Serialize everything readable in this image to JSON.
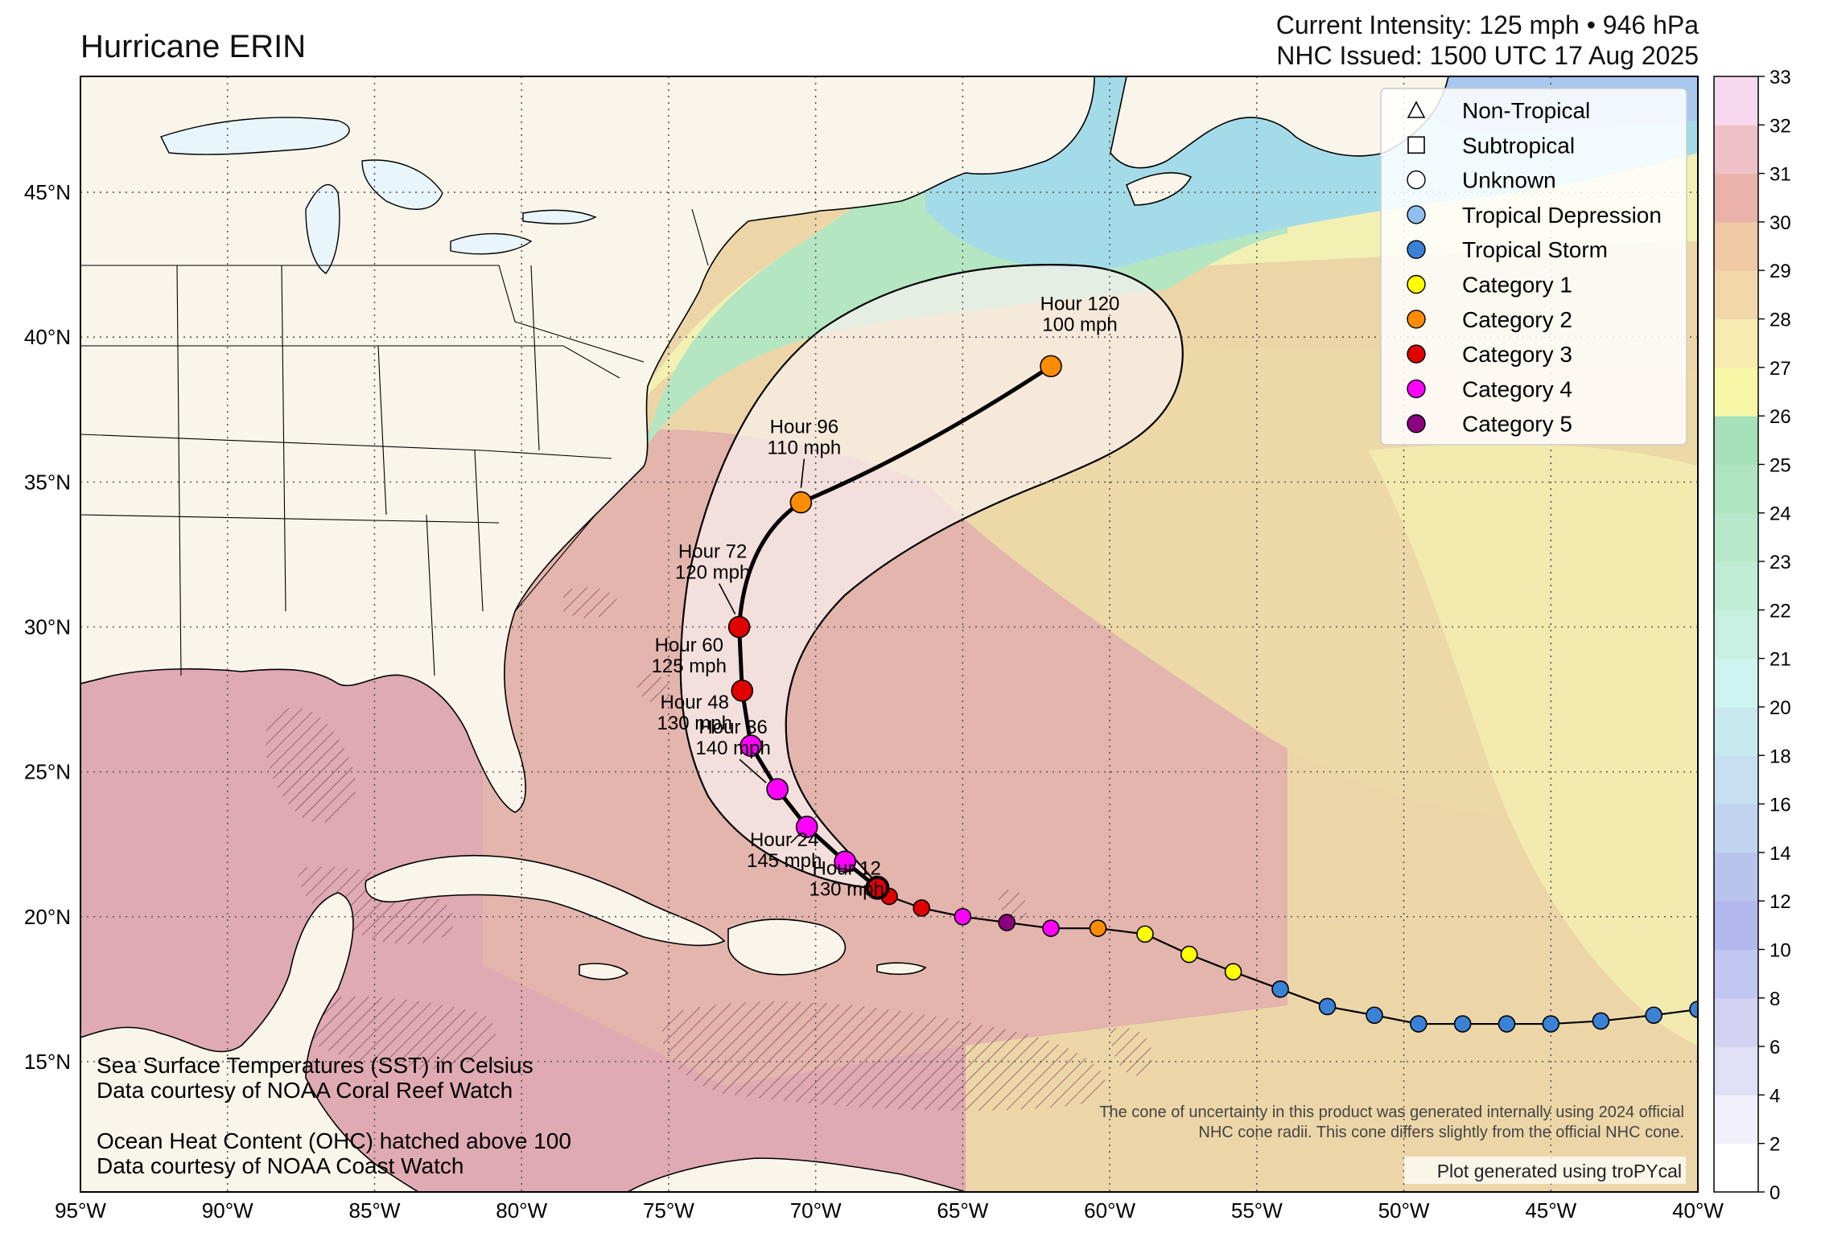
{
  "title": "Hurricane ERIN",
  "header": {
    "intensity": "Current Intensity: 125 mph • 946 hPa",
    "issued": "NHC Issued: 1500 UTC 17 Aug 2025"
  },
  "map_extent": {
    "lon": [
      -95,
      -40
    ],
    "lat": [
      10.5,
      49
    ]
  },
  "lon_ticks": [
    "95°W",
    "90°W",
    "85°W",
    "80°W",
    "75°W",
    "70°W",
    "65°W",
    "60°W",
    "55°W",
    "50°W",
    "45°W",
    "40°W"
  ],
  "lat_ticks": [
    "15°N",
    "20°N",
    "25°N",
    "30°N",
    "35°N",
    "40°N",
    "45°N"
  ],
  "legend": [
    {
      "label": "Non-Tropical",
      "shape": "triangle",
      "color": "#ffffff"
    },
    {
      "label": "Subtropical",
      "shape": "square",
      "color": "#ffffff"
    },
    {
      "label": "Unknown",
      "shape": "circle",
      "color": "#ffffff"
    },
    {
      "label": "Tropical Depression",
      "shape": "circle",
      "color": "#8fbfef"
    },
    {
      "label": "Tropical Storm",
      "shape": "circle",
      "color": "#3a82d6"
    },
    {
      "label": "Category 1",
      "shape": "circle",
      "color": "#ffff00"
    },
    {
      "label": "Category 2",
      "shape": "circle",
      "color": "#ff8c00"
    },
    {
      "label": "Category 3",
      "shape": "circle",
      "color": "#e00000"
    },
    {
      "label": "Category 4",
      "shape": "circle",
      "color": "#ff00ff"
    },
    {
      "label": "Category 5",
      "shape": "circle",
      "color": "#8b0080"
    }
  ],
  "past_track": [
    {
      "lon": -40.0,
      "lat": 16.8,
      "cat": "ts"
    },
    {
      "lon": -41.5,
      "lat": 16.6,
      "cat": "ts"
    },
    {
      "lon": -43.3,
      "lat": 16.4,
      "cat": "ts"
    },
    {
      "lon": -45.0,
      "lat": 16.3,
      "cat": "ts"
    },
    {
      "lon": -46.5,
      "lat": 16.3,
      "cat": "ts"
    },
    {
      "lon": -48.0,
      "lat": 16.3,
      "cat": "ts"
    },
    {
      "lon": -49.5,
      "lat": 16.3,
      "cat": "ts"
    },
    {
      "lon": -51.0,
      "lat": 16.6,
      "cat": "ts"
    },
    {
      "lon": -52.6,
      "lat": 16.9,
      "cat": "ts"
    },
    {
      "lon": -54.2,
      "lat": 17.5,
      "cat": "ts"
    },
    {
      "lon": -55.8,
      "lat": 18.1,
      "cat": "c1"
    },
    {
      "lon": -57.3,
      "lat": 18.7,
      "cat": "c1"
    },
    {
      "lon": -58.8,
      "lat": 19.4,
      "cat": "c1"
    },
    {
      "lon": -60.4,
      "lat": 19.6,
      "cat": "c2"
    },
    {
      "lon": -62.0,
      "lat": 19.6,
      "cat": "c4"
    },
    {
      "lon": -63.5,
      "lat": 19.8,
      "cat": "c5"
    },
    {
      "lon": -65.0,
      "lat": 20.0,
      "cat": "c4"
    },
    {
      "lon": -66.4,
      "lat": 20.3,
      "cat": "c3"
    },
    {
      "lon": -67.5,
      "lat": 20.7,
      "cat": "c3"
    }
  ],
  "forecast_track": [
    {
      "lon": -67.9,
      "lat": 21.0,
      "cat": "c3",
      "label": ""
    },
    {
      "lon": -69.0,
      "lat": 21.9,
      "cat": "c4",
      "label": "Hour 12",
      "wind": "130 mph"
    },
    {
      "lon": -70.3,
      "lat": 23.1,
      "cat": "c4",
      "label": "Hour 24",
      "wind": "145 mph"
    },
    {
      "lon": -71.3,
      "lat": 24.4,
      "cat": "c4",
      "label": "Hour 36",
      "wind": "140 mph"
    },
    {
      "lon": -72.2,
      "lat": 25.9,
      "cat": "c4",
      "label": "Hour 48",
      "wind": "130 mph"
    },
    {
      "lon": -72.5,
      "lat": 27.8,
      "cat": "c3",
      "label": "Hour 60",
      "wind": "125 mph"
    },
    {
      "lon": -72.6,
      "lat": 30.0,
      "cat": "c3",
      "label": "Hour 72",
      "wind": "120 mph"
    },
    {
      "lon": -70.5,
      "lat": 34.3,
      "cat": "c2",
      "label": "Hour 96",
      "wind": "110 mph"
    },
    {
      "lon": -62.0,
      "lat": 39.0,
      "cat": "c2",
      "label": "Hour 120",
      "wind": "100 mph"
    }
  ],
  "colorbar": {
    "ticks": [
      "0",
      "2",
      "4",
      "6",
      "8",
      "10",
      "12",
      "14",
      "16",
      "18",
      "20",
      "21",
      "22",
      "23",
      "24",
      "25",
      "26",
      "27",
      "28",
      "29",
      "30",
      "31",
      "32",
      "33"
    ]
  },
  "notes": {
    "sst_line1": "Sea Surface Temperatures (SST) in Celsius",
    "sst_line2": "Data courtesy of NOAA Coral Reef Watch",
    "ohc_line1": "Ocean Heat Content (OHC) hatched above 100",
    "ohc_line2": "Data courtesy of NOAA Coast Watch",
    "cone_line1": "The cone of uncertainty in this product was generated internally using 2024 official",
    "cone_line2": "NHC cone radii. This cone differs slightly from the official NHC cone.",
    "generated": "Plot generated using troPYcal"
  },
  "colors": {
    "land": "#faf5ea",
    "ocean_warm": "#e4b8b0",
    "ocean_hot": "#dfa9b4",
    "ocean_mid": "#ecd2a6",
    "ocean_cool": "#f5f1b0",
    "ocean_green": "#b0e8c8",
    "ocean_cold": "#9ad6ee"
  }
}
